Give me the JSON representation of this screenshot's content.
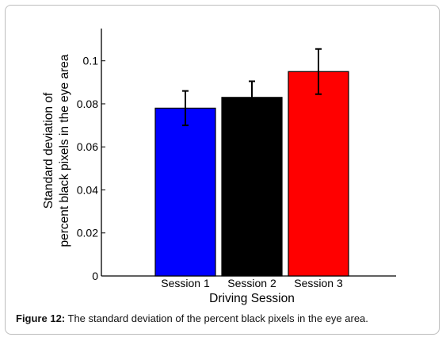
{
  "chart_data": {
    "type": "bar",
    "categories": [
      "Session 1",
      "Session 2",
      "Session 3"
    ],
    "values": [
      0.078,
      0.083,
      0.095
    ],
    "errors": [
      0.008,
      0.0075,
      0.0105
    ],
    "colors": [
      "#0000ff",
      "#000000",
      "#ff0000"
    ],
    "xlabel": "Driving Session",
    "ylabel_lines": [
      "Standard deviation of",
      "percent black pixels in the eye area"
    ],
    "ylim": [
      0,
      0.115
    ],
    "yticks": [
      0,
      0.02,
      0.04,
      0.06,
      0.08,
      0.1
    ],
    "ytick_labels": [
      "0",
      "0.02",
      "0.04",
      "0.06",
      "0.08",
      "0.1"
    ],
    "grid": false
  },
  "caption": {
    "label": "Figure 12:",
    "text": " The standard deviation of the percent black pixels in the eye area."
  }
}
